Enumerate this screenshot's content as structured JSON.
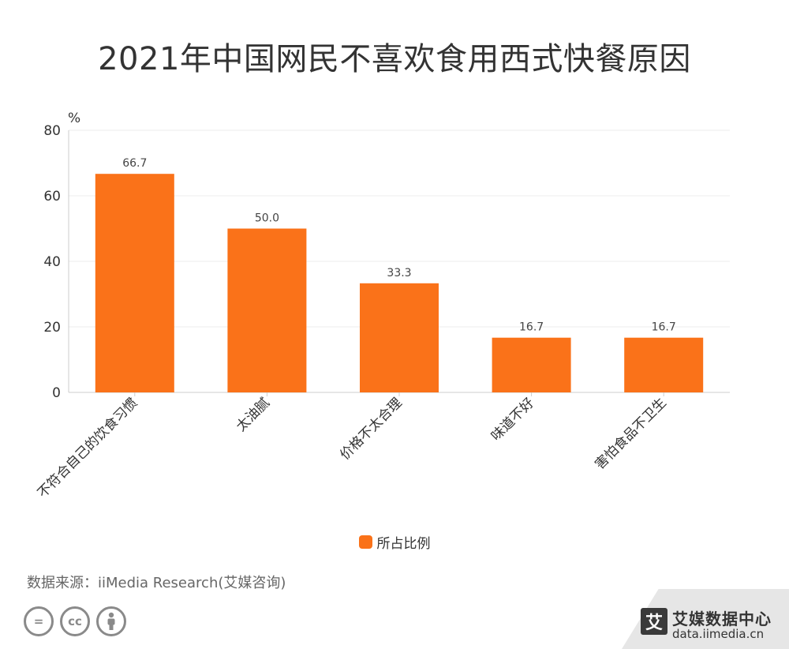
{
  "title": "2021年中国网民不喜欢食用西式快餐原因",
  "source": "数据来源：iiMedia Research(艾媒咨询)",
  "brand": {
    "logo_char": "艾",
    "name": "艾媒数据中心",
    "url": "data.iimedia.cn"
  },
  "license_icons": [
    "=",
    "cc",
    "person"
  ],
  "colors": {
    "bar": "#fa7219",
    "grid": "#eeeeee",
    "axis": "#cccccc"
  },
  "chart_data": {
    "type": "bar",
    "title": "2021年中国网民不喜欢食用西式快餐原因",
    "categories": [
      "不符合自己的饮食习惯",
      "太油腻",
      "价格不太合理",
      "味道不好",
      "害怕食品不卫生"
    ],
    "series": [
      {
        "name": "所占比例",
        "values": [
          66.7,
          50.0,
          33.3,
          16.7,
          16.7
        ]
      }
    ],
    "value_labels": [
      "66.7",
      "50.0",
      "33.3",
      "16.7",
      "16.7"
    ],
    "ylabel": "%",
    "ylim": [
      0,
      80
    ],
    "yticks": [
      0,
      20,
      40,
      60,
      80
    ],
    "grid": true,
    "legend": "bottom-center"
  }
}
